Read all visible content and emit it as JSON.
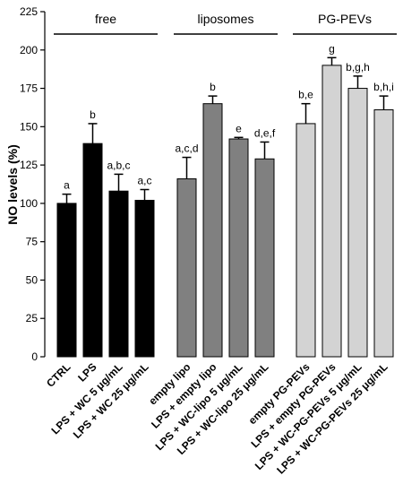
{
  "chart_data": {
    "type": "bar",
    "ylabel": "NO levels (%)",
    "ylim": [
      0,
      225
    ],
    "yticks": [
      0,
      25,
      50,
      75,
      100,
      125,
      150,
      175,
      200,
      225
    ],
    "grid": false,
    "groups": [
      {
        "label": "free",
        "color": "#000000",
        "bars": [
          {
            "category": "CTRL",
            "value": 100,
            "error": 6,
            "annotation": "a"
          },
          {
            "category": "LPS",
            "value": 139,
            "error": 13,
            "annotation": "b"
          },
          {
            "category": "LPS + WC 5 μg/mL",
            "value": 108,
            "error": 11,
            "annotation": "a,b,c"
          },
          {
            "category": "LPS + WC 25 μg/mL",
            "value": 102,
            "error": 7,
            "annotation": "a,c"
          }
        ]
      },
      {
        "label": "liposomes",
        "color": "#808080",
        "bars": [
          {
            "category": "empty lipo",
            "value": 116,
            "error": 14,
            "annotation": "a,c,d"
          },
          {
            "category": "LPS + empty lipo",
            "value": 165,
            "error": 5,
            "annotation": "b"
          },
          {
            "category": "LPS + WC-lipo 5 μg/mL",
            "value": 142,
            "error": 1,
            "annotation": "e"
          },
          {
            "category": "LPS + WC-lipo 25 μg/mL",
            "value": 129,
            "error": 11,
            "annotation": "d,e,f"
          }
        ]
      },
      {
        "label": "PG-PEVs",
        "color": "#d3d3d3",
        "bars": [
          {
            "category": "empty PG-PEVs",
            "value": 152,
            "error": 13,
            "annotation": "b,e"
          },
          {
            "category": "LPS + empty PG-PEVs",
            "value": 190,
            "error": 5,
            "annotation": "g"
          },
          {
            "category": "LPS + WC-PG-PEVs 5 μg/mL",
            "value": 175,
            "error": 8,
            "annotation": "b,g,h"
          },
          {
            "category": "LPS + WC-PG-PEVs 25 μg/mL",
            "value": 161,
            "error": 9,
            "annotation": "b,h,i"
          }
        ]
      }
    ]
  }
}
